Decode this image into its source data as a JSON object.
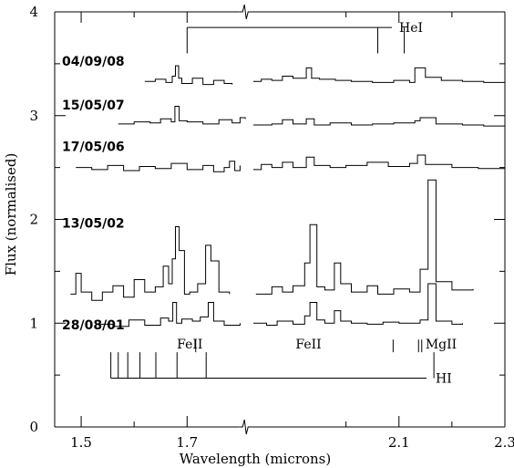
{
  "chart_data": {
    "type": "line",
    "title": "",
    "xlabel": "Wavelength (microns)",
    "ylabel": "Flux (normalised)",
    "xlim": [
      1.45,
      2.3
    ],
    "ylim": [
      0,
      4
    ],
    "axis_break": true,
    "x_tick_values": [
      1.5,
      1.7,
      2.1,
      2.3
    ],
    "x_tick_labels": [
      "1.5",
      "1.7",
      "2.1",
      "2.3"
    ],
    "y_tick_values": [
      0,
      1,
      2,
      3,
      4
    ],
    "y_tick_labels": [
      "0",
      "1",
      "2",
      "3",
      "4"
    ],
    "series": [
      {
        "name": "04/09/08",
        "label_y": 3.48,
        "segments": [
          {
            "x": [
              1.62,
              1.64,
              1.66,
              1.672,
              1.678,
              1.684,
              1.69,
              1.71,
              1.73,
              1.75,
              1.77,
              1.785
            ],
            "y": [
              3.33,
              3.35,
              3.32,
              3.38,
              3.48,
              3.36,
              3.31,
              3.36,
              3.3,
              3.34,
              3.31,
              3.3
            ]
          },
          {
            "x": [
              1.825,
              1.84,
              1.86,
              1.88,
              1.9,
              1.925,
              1.935,
              1.95,
              1.98,
              2.01,
              2.05,
              2.09,
              2.12,
              2.13,
              2.15,
              2.18,
              2.22,
              2.26,
              2.3
            ],
            "y": [
              3.33,
              3.35,
              3.34,
              3.38,
              3.36,
              3.46,
              3.36,
              3.35,
              3.34,
              3.33,
              3.32,
              3.34,
              3.32,
              3.46,
              3.37,
              3.34,
              3.33,
              3.32,
              3.31
            ]
          }
        ]
      },
      {
        "name": "15/05/07",
        "label_y": 3.06,
        "segments": [
          {
            "x": [
              1.57,
              1.6,
              1.63,
              1.65,
              1.67,
              1.677,
              1.685,
              1.7,
              1.73,
              1.76,
              1.785,
              1.8,
              1.81
            ],
            "y": [
              2.92,
              2.94,
              2.93,
              2.97,
              2.94,
              3.09,
              2.95,
              2.94,
              2.92,
              2.96,
              2.93,
              2.98,
              2.97
            ]
          },
          {
            "x": [
              1.825,
              1.86,
              1.88,
              1.9,
              1.925,
              1.94,
              1.97,
              2.01,
              2.05,
              2.09,
              2.13,
              2.14,
              2.17,
              2.22,
              2.26,
              2.3
            ],
            "y": [
              2.91,
              2.92,
              2.96,
              2.92,
              2.97,
              2.91,
              2.93,
              2.91,
              2.92,
              2.93,
              2.95,
              2.98,
              2.92,
              2.91,
              2.9,
              2.89
            ]
          }
        ]
      },
      {
        "name": "17/05/06",
        "label_y": 2.66,
        "segments": [
          {
            "x": [
              1.49,
              1.52,
              1.55,
              1.58,
              1.61,
              1.64,
              1.67,
              1.7,
              1.73,
              1.75,
              1.77,
              1.78,
              1.79,
              1.8
            ],
            "y": [
              2.5,
              2.48,
              2.52,
              2.47,
              2.51,
              2.49,
              2.54,
              2.48,
              2.52,
              2.46,
              2.5,
              2.56,
              2.47,
              2.52
            ]
          },
          {
            "x": [
              1.825,
              1.84,
              1.86,
              1.88,
              1.9,
              1.925,
              1.94,
              1.97,
              2.0,
              2.04,
              2.08,
              2.12,
              2.135,
              2.15,
              2.2,
              2.25,
              2.3
            ],
            "y": [
              2.48,
              2.53,
              2.5,
              2.55,
              2.5,
              2.6,
              2.52,
              2.5,
              2.52,
              2.55,
              2.51,
              2.54,
              2.62,
              2.53,
              2.5,
              2.49,
              2.48
            ]
          }
        ]
      },
      {
        "name": "13/05/02",
        "label_y": 1.92,
        "segments": [
          {
            "x": [
              1.48,
              1.49,
              1.5,
              1.52,
              1.54,
              1.56,
              1.58,
              1.6,
              1.62,
              1.64,
              1.655,
              1.665,
              1.672,
              1.678,
              1.685,
              1.695,
              1.705,
              1.72,
              1.735,
              1.745,
              1.76,
              1.78
            ],
            "y": [
              1.28,
              1.48,
              1.3,
              1.22,
              1.3,
              1.36,
              1.25,
              1.42,
              1.3,
              1.35,
              1.55,
              1.38,
              1.62,
              1.93,
              1.7,
              1.28,
              1.3,
              1.38,
              1.75,
              1.6,
              1.3,
              1.28
            ]
          },
          {
            "x": [
              1.83,
              1.86,
              1.88,
              1.9,
              1.922,
              1.932,
              1.945,
              1.96,
              1.978,
              1.99,
              2.01,
              2.04,
              2.06,
              2.09,
              2.12,
              2.14,
              2.155,
              2.17,
              2.2,
              2.24
            ],
            "y": [
              1.28,
              1.35,
              1.3,
              1.36,
              1.58,
              1.95,
              1.35,
              1.32,
              1.58,
              1.38,
              1.3,
              1.36,
              1.28,
              1.33,
              1.3,
              1.52,
              2.38,
              1.4,
              1.32,
              1.33
            ]
          }
        ]
      },
      {
        "name": "28/08/01",
        "label_y": 0.94,
        "segments": [
          {
            "x": [
              1.53,
              1.56,
              1.59,
              1.62,
              1.65,
              1.665,
              1.673,
              1.68,
              1.69,
              1.71,
              1.725,
              1.74,
              1.75,
              1.77,
              1.8
            ],
            "y": [
              0.99,
              0.97,
              1.03,
              0.98,
              1.05,
              1.02,
              1.2,
              1.0,
              1.04,
              1.02,
              1.06,
              1.2,
              1.02,
              0.98,
              1.0
            ]
          },
          {
            "x": [
              1.825,
              1.85,
              1.87,
              1.9,
              1.922,
              1.932,
              1.945,
              1.96,
              1.978,
              1.99,
              2.01,
              2.04,
              2.07,
              2.1,
              2.14,
              2.155,
              2.17,
              2.2,
              2.22
            ],
            "y": [
              1.0,
              0.98,
              1.02,
              0.99,
              1.07,
              1.2,
              1.03,
              1.0,
              1.12,
              1.02,
              1.0,
              0.99,
              1.01,
              1.0,
              1.03,
              1.38,
              1.02,
              0.99,
              1.0
            ]
          }
        ]
      }
    ],
    "line_markers": [
      {
        "name": "HeI",
        "base_y": 3.85,
        "tick_y": 3.6,
        "x_start": 1.7,
        "x_end": 2.3,
        "label_x": 2.17,
        "positions": [
          1.7,
          2.06,
          2.11
        ]
      },
      {
        "name": "HI",
        "base_y": 0.47,
        "tick_y": 0.72,
        "x_start": 1.556,
        "x_end": 2.35,
        "label_x": 2.38,
        "positions": [
          1.556,
          1.57,
          1.588,
          1.611,
          1.641,
          1.681,
          1.736,
          2.166
        ]
      }
    ],
    "line_ticks": [
      {
        "name": "FeII",
        "positions": [
          1.644
        ],
        "label_x": 1.655,
        "y_top": 1.0,
        "y_bottom": 0.72
      },
      {
        "name": "FeII",
        "positions": [
          2.089
        ],
        "label_x": 1.905,
        "y_top": 1.0,
        "y_bottom": 0.72
      },
      {
        "name": "MgII",
        "positions": [
          2.137,
          2.143
        ],
        "label_x": 2.15,
        "y_top": 1.0,
        "y_bottom": 0.72
      }
    ]
  }
}
